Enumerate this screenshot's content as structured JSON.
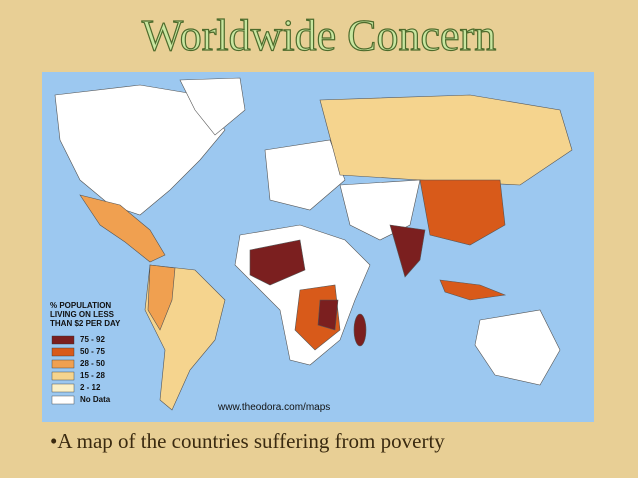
{
  "title": "Worldwide Concern",
  "map": {
    "legend": {
      "title_lines": [
        "% POPULATION",
        "LIVING ON LESS",
        "THAN $2 PER DAY"
      ],
      "items": [
        {
          "label": "75 - 92",
          "color": "#7b1f1f"
        },
        {
          "label": "50 - 75",
          "color": "#d85a1a"
        },
        {
          "label": "28 - 50",
          "color": "#f0a050"
        },
        {
          "label": "15 - 28",
          "color": "#f5d48e"
        },
        {
          "label": "2 - 12",
          "color": "#faf0c8"
        },
        {
          "label": "No Data",
          "color": "#ffffff"
        }
      ]
    },
    "source": "www.theodora.com/maps"
  },
  "caption": "•A map of the countries suffering from poverty"
}
